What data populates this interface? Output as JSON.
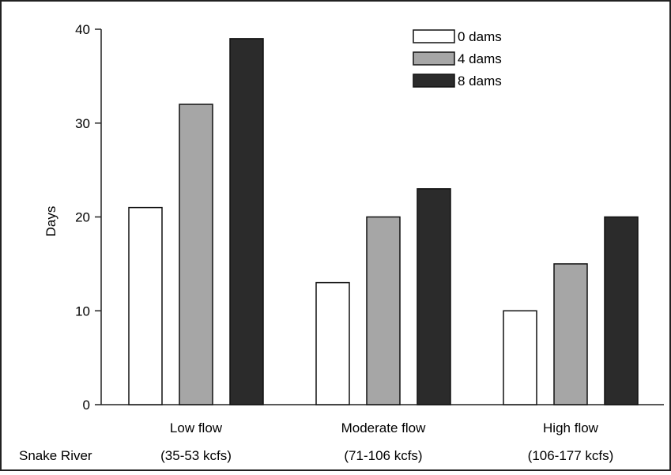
{
  "chart_data": {
    "type": "bar",
    "ylabel": "Days",
    "ylim": [
      0,
      40
    ],
    "yticks": [
      0,
      10,
      20,
      30,
      40
    ],
    "categories": [
      "Low flow",
      "Moderate flow",
      "High flow"
    ],
    "category_sublabels": [
      "(35-53 kcfs)",
      "(71-106 kcfs)",
      "(106-177 kcfs)"
    ],
    "row_label": "Snake River",
    "series": [
      {
        "name": "0 dams",
        "values": [
          21,
          13,
          10
        ],
        "color": "#ffffff"
      },
      {
        "name": "4 dams",
        "values": [
          32,
          20,
          15
        ],
        "color": "#a6a6a6"
      },
      {
        "name": "8 dams",
        "values": [
          39,
          23,
          20
        ],
        "color": "#2b2b2b"
      }
    ],
    "legend_position": "top-right",
    "grid": false
  }
}
